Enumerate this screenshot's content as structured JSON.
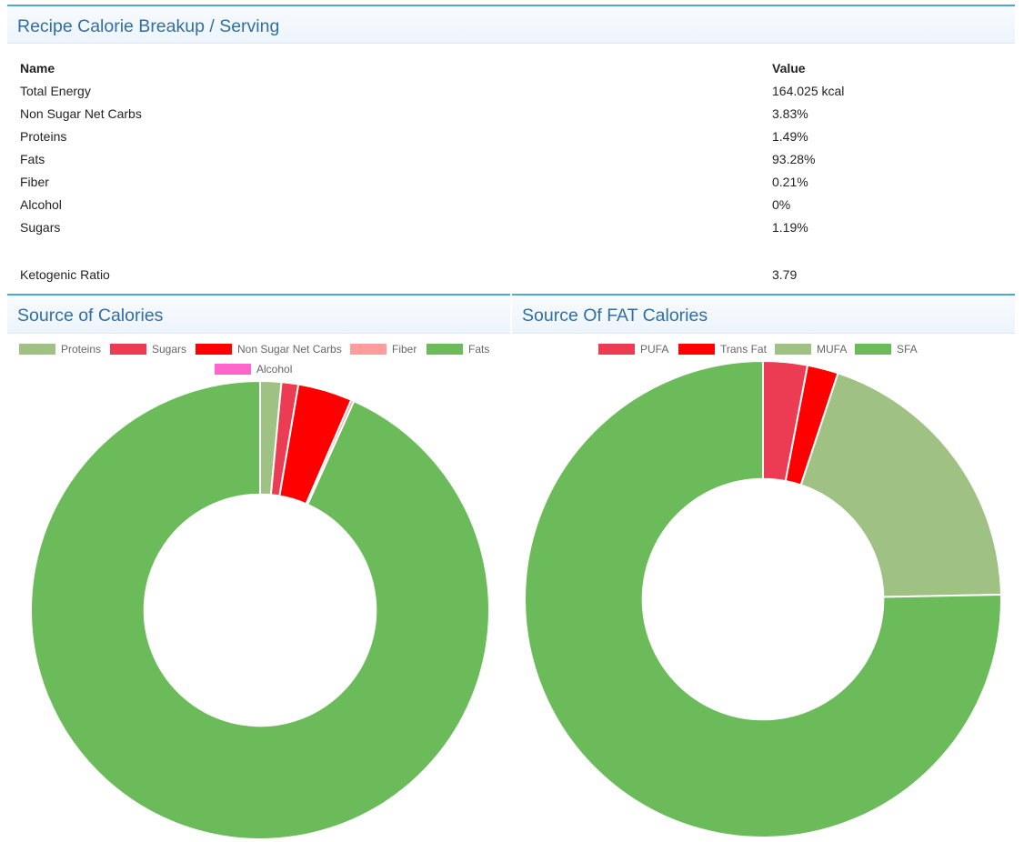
{
  "top_panel": {
    "title": "Recipe Calorie Breakup / Serving",
    "table": {
      "headers": [
        "Name",
        "Value"
      ],
      "rows": [
        [
          "Total Energy",
          "164.025 kcal"
        ],
        [
          "Non Sugar Net Carbs",
          "3.83%"
        ],
        [
          "Proteins",
          "1.49%"
        ],
        [
          "Fats",
          "93.28%"
        ],
        [
          "Fiber",
          "0.21%"
        ],
        [
          "Alcohol",
          "0%"
        ],
        [
          "Sugars",
          "1.19%"
        ]
      ],
      "ratio_row": [
        "Ketogenic Ratio",
        "3.79"
      ]
    }
  },
  "chart_data": [
    {
      "type": "pie",
      "title": "Source of Calories",
      "donut": true,
      "legend_position": "top",
      "categories": [
        "Proteins",
        "Sugars",
        "Non Sugar Net Carbs",
        "Fiber",
        "Fats",
        "Alcohol"
      ],
      "values": [
        1.49,
        1.19,
        3.83,
        0.21,
        93.28,
        0
      ],
      "colors": [
        "#9fc184",
        "#ec3c53",
        "#ff0000",
        "#ff9c9c",
        "#6cbb5a",
        "#ff66cc"
      ]
    },
    {
      "type": "pie",
      "title": "Source Of FAT Calories",
      "donut": true,
      "legend_position": "top",
      "categories": [
        "PUFA",
        "Trans Fat",
        "MUFA",
        "SFA"
      ],
      "values": [
        3.0,
        2.1,
        19.6,
        75.3
      ],
      "colors": [
        "#ec3c53",
        "#ff0000",
        "#9fc184",
        "#6cbb5a"
      ]
    }
  ]
}
